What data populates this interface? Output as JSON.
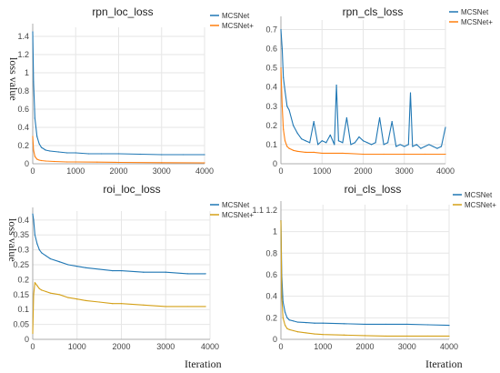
{
  "figure": {
    "ylabel_text": "loss value",
    "xlabel_text": "Iteration"
  },
  "chart_data": [
    {
      "type": "line",
      "title": "rpn_loc_loss",
      "ylabel": "loss value",
      "xlabel": "",
      "xlim": [
        0,
        4000
      ],
      "ylim": [
        0,
        1.5
      ],
      "xticks": [
        0,
        1000,
        2000,
        3000,
        4000
      ],
      "yticks": [
        0,
        0.2,
        0.4,
        0.6,
        0.8,
        1,
        1.2,
        1.4
      ],
      "grid": true,
      "legend": "top-right",
      "series": [
        {
          "name": "MCSNet",
          "color": "#1f77b4",
          "x": [
            0,
            20,
            50,
            100,
            150,
            200,
            300,
            400,
            600,
            800,
            1000,
            1300,
            1600,
            2000,
            2500,
            3000,
            3500,
            4000
          ],
          "y": [
            1.45,
            0.9,
            0.5,
            0.3,
            0.22,
            0.18,
            0.15,
            0.14,
            0.13,
            0.12,
            0.12,
            0.11,
            0.11,
            0.11,
            0.105,
            0.1,
            0.1,
            0.1
          ]
        },
        {
          "name": "MCSNet+",
          "color": "#ff7f0e",
          "x": [
            0,
            20,
            50,
            100,
            150,
            200,
            300,
            500,
            800,
            1000,
            1500,
            2000,
            3000,
            4000
          ],
          "y": [
            0.3,
            0.15,
            0.08,
            0.05,
            0.04,
            0.035,
            0.03,
            0.025,
            0.02,
            0.02,
            0.018,
            0.015,
            0.012,
            0.01
          ]
        }
      ]
    },
    {
      "type": "line",
      "title": "rpn_cls_loss",
      "ylabel": "",
      "xlabel": "",
      "xlim": [
        0,
        4000
      ],
      "ylim": [
        0,
        0.75
      ],
      "xticks": [
        0,
        1000,
        2000,
        3000,
        4000
      ],
      "yticks": [
        0,
        0.1,
        0.2,
        0.3,
        0.4,
        0.5,
        0.6,
        0.7
      ],
      "grid": true,
      "legend": "top-right",
      "series": [
        {
          "name": "MCSNet",
          "color": "#1f77b4",
          "x": [
            0,
            30,
            60,
            100,
            150,
            200,
            300,
            400,
            500,
            600,
            700,
            800,
            900,
            1000,
            1100,
            1200,
            1300,
            1350,
            1400,
            1500,
            1600,
            1700,
            1800,
            1900,
            2000,
            2100,
            2200,
            2300,
            2400,
            2500,
            2600,
            2700,
            2800,
            2900,
            3000,
            3100,
            3150,
            3200,
            3300,
            3400,
            3500,
            3600,
            3700,
            3800,
            3900,
            4000
          ],
          "y": [
            0.7,
            0.6,
            0.45,
            0.38,
            0.3,
            0.28,
            0.2,
            0.16,
            0.13,
            0.12,
            0.11,
            0.22,
            0.1,
            0.12,
            0.11,
            0.15,
            0.1,
            0.41,
            0.12,
            0.11,
            0.24,
            0.1,
            0.11,
            0.14,
            0.12,
            0.11,
            0.1,
            0.11,
            0.24,
            0.1,
            0.11,
            0.22,
            0.09,
            0.1,
            0.09,
            0.1,
            0.37,
            0.09,
            0.1,
            0.08,
            0.09,
            0.1,
            0.09,
            0.08,
            0.09,
            0.19
          ]
        },
        {
          "name": "MCSNet+",
          "color": "#ff7f0e",
          "x": [
            0,
            30,
            60,
            100,
            150,
            200,
            300,
            400,
            600,
            800,
            1000,
            1500,
            2000,
            2500,
            3000,
            3500,
            4000
          ],
          "y": [
            0.5,
            0.3,
            0.18,
            0.12,
            0.09,
            0.08,
            0.07,
            0.065,
            0.06,
            0.06,
            0.055,
            0.055,
            0.05,
            0.05,
            0.05,
            0.05,
            0.05
          ]
        }
      ]
    },
    {
      "type": "line",
      "title": "roi_loc_loss",
      "ylabel": "loss value",
      "xlabel": "Iteration",
      "xlim": [
        0,
        4000
      ],
      "ylim": [
        0,
        0.43
      ],
      "xticks": [
        0,
        1000,
        2000,
        3000,
        4000
      ],
      "yticks": [
        0,
        0.05,
        0.1,
        0.15,
        0.2,
        0.25,
        0.3,
        0.35,
        0.4
      ],
      "grid": true,
      "legend": "top-right",
      "series": [
        {
          "name": "MCSNet",
          "color": "#1f77b4",
          "x": [
            0,
            20,
            50,
            100,
            150,
            200,
            300,
            400,
            600,
            800,
            1000,
            1200,
            1500,
            1800,
            2000,
            2500,
            3000,
            3500,
            3900
          ],
          "y": [
            0.42,
            0.4,
            0.35,
            0.32,
            0.3,
            0.29,
            0.28,
            0.27,
            0.26,
            0.25,
            0.245,
            0.24,
            0.235,
            0.23,
            0.23,
            0.225,
            0.225,
            0.22,
            0.22
          ]
        },
        {
          "name": "MCSNet+",
          "color": "#d4a017",
          "x": [
            0,
            20,
            50,
            100,
            150,
            200,
            300,
            400,
            600,
            800,
            1000,
            1200,
            1500,
            1800,
            2000,
            2500,
            3000,
            3500,
            3900
          ],
          "y": [
            0.02,
            0.15,
            0.19,
            0.18,
            0.17,
            0.165,
            0.16,
            0.155,
            0.15,
            0.14,
            0.135,
            0.13,
            0.125,
            0.12,
            0.12,
            0.115,
            0.11,
            0.11,
            0.11
          ]
        }
      ]
    },
    {
      "type": "line",
      "title": "roi_cls_loss",
      "ylabel": "",
      "xlabel": "Iteration",
      "xlim": [
        0,
        4000
      ],
      "ylim": [
        0,
        1.25
      ],
      "xticks": [
        0,
        1000,
        2000,
        3000,
        4000
      ],
      "yticks": [
        0,
        0.2,
        0.4,
        0.6,
        0.8,
        1,
        1.2
      ],
      "ytick_labels": [
        "0",
        "0.2",
        "0.4",
        "0.6",
        "0.8",
        "1",
        "1.1 1.2"
      ],
      "grid": true,
      "legend": "top-right",
      "series": [
        {
          "name": "MCSNet",
          "color": "#1f77b4",
          "x": [
            0,
            20,
            50,
            100,
            150,
            200,
            300,
            400,
            600,
            800,
            1000,
            1500,
            2000,
            2500,
            3000,
            3500,
            4000
          ],
          "y": [
            1.1,
            0.6,
            0.35,
            0.25,
            0.2,
            0.18,
            0.17,
            0.16,
            0.155,
            0.15,
            0.15,
            0.145,
            0.14,
            0.14,
            0.14,
            0.135,
            0.13
          ]
        },
        {
          "name": "MCSNet+",
          "color": "#d4a017",
          "x": [
            0,
            20,
            50,
            100,
            150,
            200,
            300,
            400,
            600,
            800,
            1000,
            1500,
            2000,
            2500,
            3000,
            3500,
            4000
          ],
          "y": [
            1.1,
            0.4,
            0.2,
            0.13,
            0.1,
            0.09,
            0.08,
            0.07,
            0.06,
            0.05,
            0.045,
            0.04,
            0.035,
            0.03,
            0.03,
            0.03,
            0.03
          ]
        }
      ]
    }
  ]
}
